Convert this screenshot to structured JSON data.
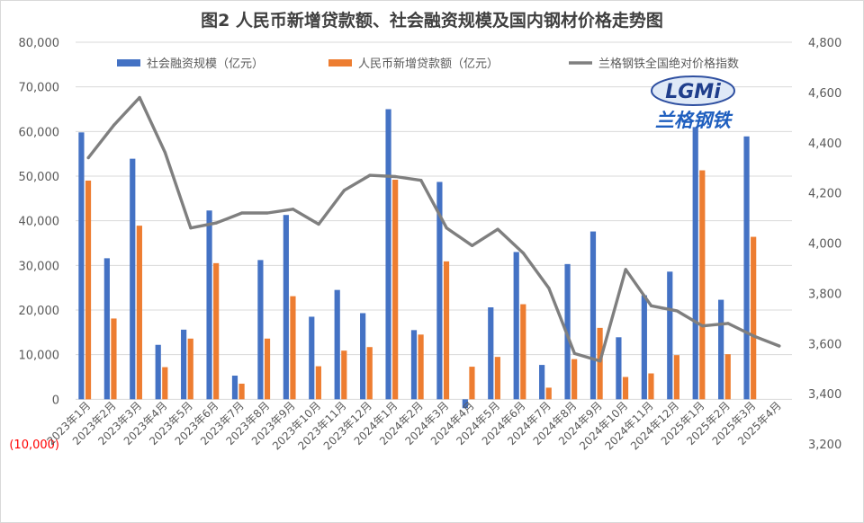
{
  "chart_data": {
    "type": "bar",
    "title": "图2 人民币新增贷款额、社会融资规模及国内钢材价格走势图",
    "categories": [
      "2023年1月",
      "2023年2月",
      "2023年3月",
      "2023年4月",
      "2023年5月",
      "2023年6月",
      "2023年7月",
      "2023年8月",
      "2023年9月",
      "2023年10月",
      "2023年11月",
      "2023年12月",
      "2024年1月",
      "2024年2月",
      "2024年3月",
      "2024年4月",
      "2024年5月",
      "2024年6月",
      "2024年7月",
      "2024年8月",
      "2024年9月",
      "2024年10月",
      "2024年11月",
      "2024年12月",
      "2025年1月",
      "2025年2月",
      "2025年3月",
      "2025年4月"
    ],
    "series": [
      {
        "name": "社会融资规模（亿元）",
        "type": "bar",
        "axis": "left",
        "color": "#4472c4",
        "values": [
          59800,
          31600,
          53900,
          12200,
          15600,
          42300,
          5300,
          31200,
          41300,
          18500,
          24500,
          19300,
          65000,
          15500,
          48700,
          -2000,
          20600,
          33000,
          7700,
          30300,
          37600,
          13900,
          23300,
          28600,
          61000,
          22300,
          58900,
          null
        ]
      },
      {
        "name": "人民币新增贷款额（亿元）",
        "type": "bar",
        "axis": "left",
        "color": "#ed7d31",
        "values": [
          49000,
          18100,
          38900,
          7200,
          13600,
          30500,
          3500,
          13600,
          23100,
          7400,
          10900,
          11700,
          49200,
          14500,
          30900,
          7300,
          9500,
          21300,
          2600,
          9000,
          16000,
          5000,
          5800,
          9900,
          51300,
          10100,
          36400,
          null
        ]
      },
      {
        "name": "兰格钢铁全国绝对价格指数",
        "type": "line",
        "axis": "right",
        "color": "#7f7f7f",
        "values": [
          4340,
          4470,
          4580,
          4360,
          4060,
          4080,
          4120,
          4120,
          4135,
          4075,
          4210,
          4270,
          4265,
          4250,
          4060,
          3990,
          4055,
          3960,
          3820,
          3560,
          3530,
          3895,
          3750,
          3730,
          3670,
          3680,
          3630,
          3590
        ]
      }
    ],
    "y_left": {
      "min": -10000,
      "max": 80000,
      "step": 10000,
      "tick_labels": [
        "(10,000)",
        "0",
        "10,000",
        "20,000",
        "30,000",
        "40,000",
        "50,000",
        "60,000",
        "70,000",
        "80,000"
      ]
    },
    "y_right": {
      "min": 3200,
      "max": 4800,
      "step": 200,
      "tick_labels": [
        "3,200",
        "3,400",
        "3,600",
        "3,800",
        "4,000",
        "4,200",
        "4,400",
        "4,600",
        "4,800"
      ]
    },
    "grid": true,
    "legend_position": "top",
    "watermark": {
      "logo_text": "LGMi",
      "caption": "兰格钢铁"
    },
    "colors": {
      "negative_tick": "#ff0000",
      "gridline": "#d9d9d9",
      "axis_text": "#595959"
    }
  }
}
